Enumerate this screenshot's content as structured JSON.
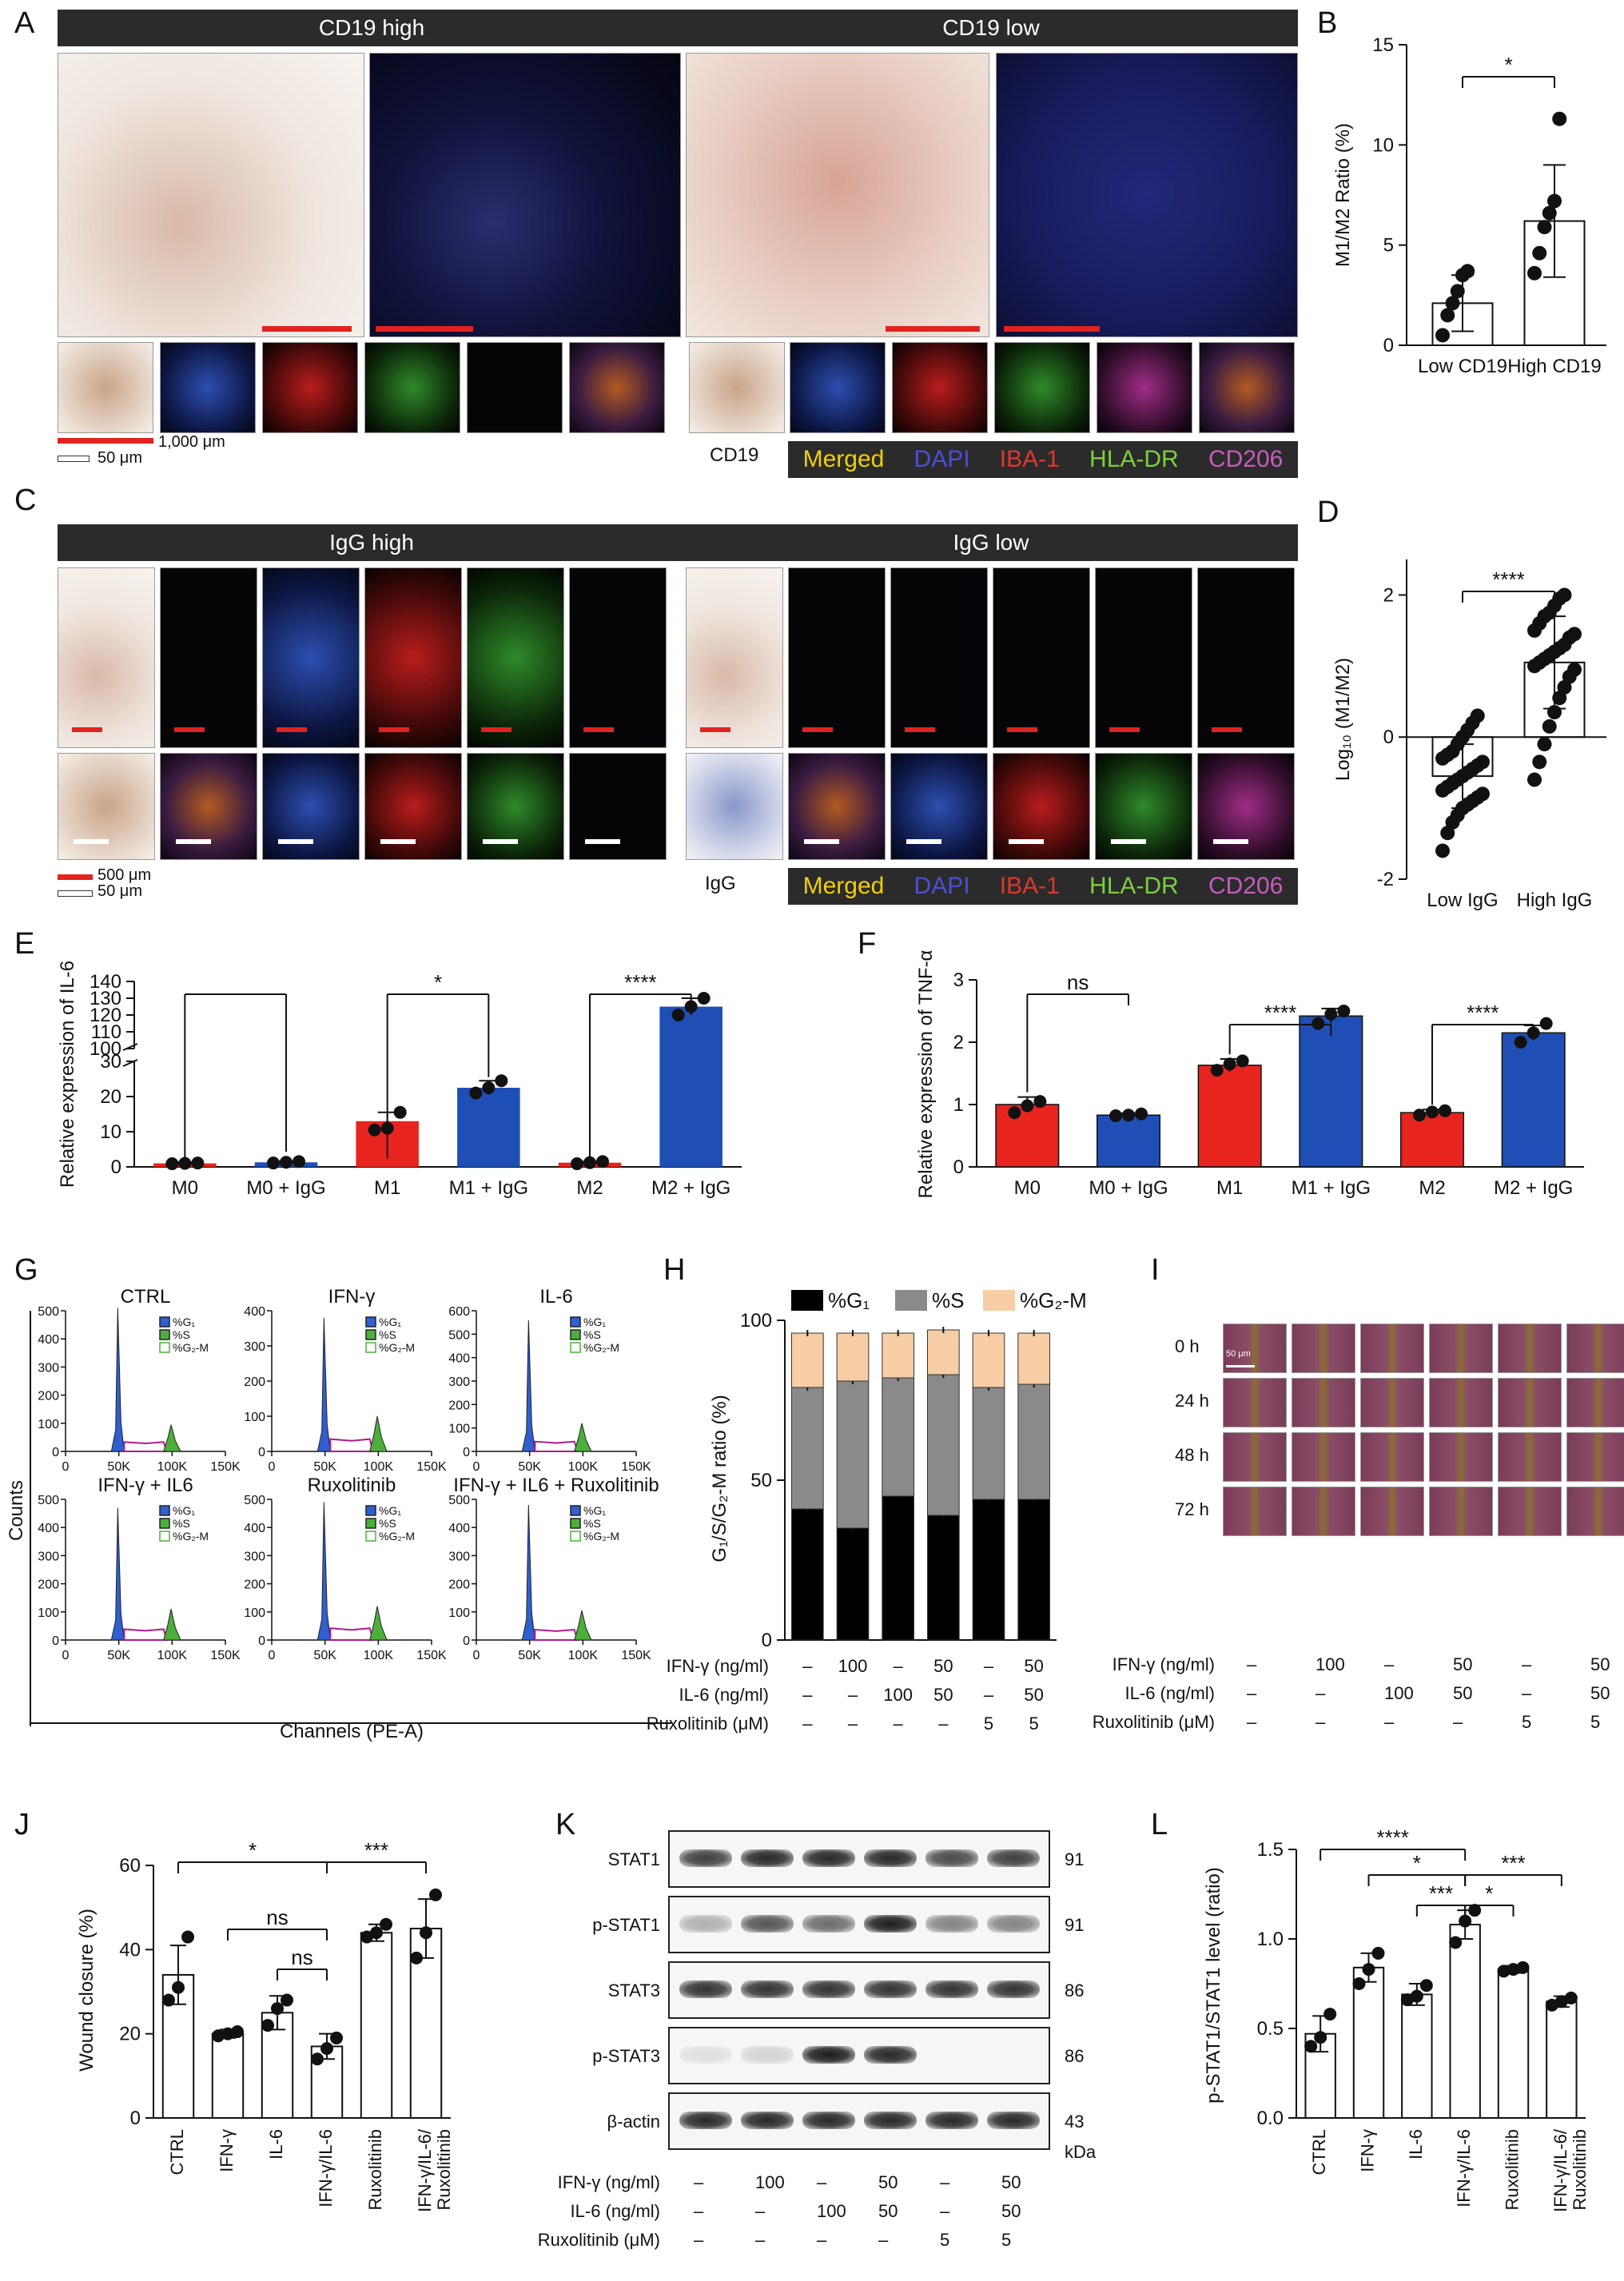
{
  "panels": {
    "A": "A",
    "B": "B",
    "C": "C",
    "D": "D",
    "E": "E",
    "F": "F",
    "G": "G",
    "H": "H",
    "I": "I",
    "J": "J",
    "K": "K",
    "L": "L"
  },
  "panelA": {
    "banner_high": "CD19 high",
    "banner_low": "CD19 low",
    "scale_1000": "1,000 μm",
    "scale_50": "50 μm",
    "marker_label": "CD19",
    "legend": {
      "merged": "Merged",
      "dapi": "DAPI",
      "iba1": "IBA-1",
      "hladr": "HLA-DR",
      "cd206": "CD206"
    },
    "legend_colors": {
      "merged": "#f0d000",
      "dapi": "#4b4fd6",
      "iba1": "#e0372c",
      "hladr": "#7bcf3c",
      "cd206": "#c75cc0"
    }
  },
  "panelC": {
    "banner_high": "IgG high",
    "banner_low": "IgG low",
    "scale_500": "500 μm",
    "scale_50": "50 μm",
    "marker_label": "IgG"
  },
  "chart_data": [
    {
      "id": "B",
      "type": "scatter",
      "ylabel": "M1/M2 Ratio (%)",
      "ylim": [
        0,
        15
      ],
      "yticks": [
        "0",
        "5",
        "10",
        "15"
      ],
      "categories": [
        "Low CD19",
        "High CD19"
      ],
      "means": [
        2.1,
        6.2
      ],
      "sd": [
        1.4,
        2.8
      ],
      "points": [
        [
          0.5,
          1.5,
          2.1,
          2.7,
          3.5,
          3.7
        ],
        [
          3.6,
          4.6,
          5.9,
          6.6,
          7.2,
          11.3
        ]
      ],
      "significance": [
        "*"
      ]
    },
    {
      "id": "D",
      "type": "scatter",
      "ylabel": "Log₁₀ (M1/M2)",
      "ylim": [
        -2,
        2.5
      ],
      "yticks": [
        "-2",
        "0",
        "2"
      ],
      "categories": [
        "Low IgG",
        "High IgG"
      ],
      "means": [
        -0.55,
        1.05
      ],
      "sd": [
        0.45,
        0.65
      ],
      "points": [
        [
          -1.6,
          -1.35,
          -1.2,
          -1.1,
          -1.0,
          -0.95,
          -0.9,
          -0.85,
          -0.8,
          -0.75,
          -0.7,
          -0.65,
          -0.6,
          -0.55,
          -0.5,
          -0.45,
          -0.4,
          -0.35,
          -0.3,
          -0.25,
          -0.2,
          -0.1,
          0.0,
          0.1,
          0.2,
          0.3
        ],
        [
          -0.6,
          -0.35,
          -0.1,
          0.15,
          0.35,
          0.55,
          0.7,
          0.85,
          0.95,
          1.0,
          1.05,
          1.1,
          1.15,
          1.2,
          1.25,
          1.3,
          1.4,
          1.45,
          1.5,
          1.6,
          1.7,
          1.75,
          1.85,
          1.95,
          2.0
        ]
      ],
      "significance": [
        "****"
      ]
    },
    {
      "id": "E",
      "type": "bar",
      "ylabel": "Relative expression of IL-6",
      "categories": [
        "M0",
        "M0 + IgG",
        "M1",
        "M1 + IgG",
        "M2",
        "M2 + IgG"
      ],
      "values": [
        1.0,
        1.3,
        13.0,
        22.5,
        1.2,
        125.0
      ],
      "sd": [
        0.3,
        0.3,
        2.5,
        2.0,
        0.3,
        5.0
      ],
      "colors": [
        "#e8241f",
        "#1f4fb5",
        "#e8241f",
        "#1f4fb5",
        "#e8241f",
        "#1f4fb5"
      ],
      "yticks_low": [
        "0",
        "10",
        "20",
        "30"
      ],
      "yticks_high": [
        "100",
        "110",
        "120",
        "130",
        "140"
      ],
      "points": [
        [
          0.9,
          1.0,
          1.1
        ],
        [
          1.1,
          1.3,
          1.5
        ],
        [
          10.5,
          11.0,
          15.5
        ],
        [
          21.0,
          22.5,
          24.5
        ],
        [
          0.9,
          1.2,
          1.5
        ],
        [
          120.0,
          125.0,
          130.0
        ]
      ],
      "significance": [
        {
          "label": "",
          "from": 0,
          "to": 1
        },
        {
          "label": "*",
          "from": 2,
          "to": 3
        },
        {
          "label": "****",
          "from": 4,
          "to": 5
        }
      ]
    },
    {
      "id": "F",
      "type": "bar",
      "ylabel": "Relative expression of TNF-α",
      "ylim": [
        0,
        3
      ],
      "yticks": [
        "0",
        "1",
        "2",
        "3"
      ],
      "categories": [
        "M0",
        "M0 + IgG",
        "M1",
        "M1 + IgG",
        "M2",
        "M2 + IgG"
      ],
      "values": [
        1.0,
        0.83,
        1.63,
        2.42,
        0.87,
        2.15
      ],
      "sd": [
        0.12,
        0.03,
        0.1,
        0.12,
        0.05,
        0.12
      ],
      "colors": [
        "#e8241f",
        "#1f4fb5",
        "#e8241f",
        "#1f4fb5",
        "#e8241f",
        "#1f4fb5"
      ],
      "points": [
        [
          0.87,
          0.98,
          1.05
        ],
        [
          0.82,
          0.83,
          0.85
        ],
        [
          1.55,
          1.65,
          1.7
        ],
        [
          2.3,
          2.45,
          2.5
        ],
        [
          0.83,
          0.88,
          0.9
        ],
        [
          2.0,
          2.15,
          2.3
        ]
      ],
      "significance": [
        {
          "label": "ns",
          "from": 0,
          "to": 1
        },
        {
          "label": "****",
          "from": 2,
          "to": 3
        },
        {
          "label": "****",
          "from": 4,
          "to": 5
        }
      ]
    },
    {
      "id": "G",
      "type": "area",
      "xlabel": "Channels (PE-A)",
      "ylabel": "Counts",
      "histograms": [
        {
          "title": "CTRL",
          "yticks": [
            "0",
            "100",
            "200",
            "300",
            "400",
            "500"
          ],
          "ymax": 500,
          "peak1": 510,
          "peak2": 95
        },
        {
          "title": "IFN-γ",
          "yticks": [
            "0",
            "100",
            "200",
            "300",
            "400"
          ],
          "ymax": 400,
          "peak1": 380,
          "peak2": 100
        },
        {
          "title": "IL-6",
          "yticks": [
            "0",
            "100",
            "200",
            "300",
            "400",
            "500",
            "600"
          ],
          "ymax": 600,
          "peak1": 560,
          "peak2": 120
        },
        {
          "title": "IFN-γ + IL6",
          "yticks": [
            "0",
            "100",
            "200",
            "300",
            "400",
            "500"
          ],
          "ymax": 500,
          "peak1": 470,
          "peak2": 110
        },
        {
          "title": "Ruxolitinib",
          "yticks": [
            "0",
            "100",
            "200",
            "300",
            "400",
            "500"
          ],
          "ymax": 500,
          "peak1": 490,
          "peak2": 120
        },
        {
          "title": "IFN-γ + IL6 + Ruxolitinib",
          "yticks": [
            "0",
            "100",
            "200",
            "300",
            "400",
            "500"
          ],
          "ymax": 500,
          "peak1": 480,
          "peak2": 105
        }
      ],
      "xticks": [
        "0",
        "50K",
        "100K",
        "150K"
      ],
      "legend": [
        "%G₁",
        "%S",
        "%G₂-M"
      ]
    },
    {
      "id": "H",
      "type": "bar",
      "stacked": true,
      "ylabel": "G₁/S/G₂-M ratio (%)",
      "ylim": [
        0,
        100
      ],
      "yticks": [
        "0",
        "50",
        "100"
      ],
      "legend": [
        "%G₁",
        "%S",
        "%G₂-M"
      ],
      "colors": [
        "#000000",
        "#8a8a8a",
        "#f6cda4"
      ],
      "series": [
        {
          "name": "%G₁",
          "values": [
            41,
            35,
            45,
            39,
            44,
            44
          ]
        },
        {
          "name": "%S",
          "values": [
            38,
            46,
            37,
            44,
            35,
            36
          ]
        },
        {
          "name": "%G₂-M",
          "values": [
            17,
            15,
            14,
            14,
            17,
            16
          ]
        }
      ],
      "rows": [
        {
          "label": "IFN-γ (ng/ml)",
          "values": [
            "–",
            "100",
            "–",
            "50",
            "–",
            "50"
          ]
        },
        {
          "label": "IL-6 (ng/ml)",
          "values": [
            "–",
            "–",
            "100",
            "50",
            "–",
            "50"
          ]
        },
        {
          "label": "Ruxolitinib (μM)",
          "values": [
            "–",
            "–",
            "–",
            "–",
            "5",
            "5"
          ]
        }
      ]
    },
    {
      "id": "J",
      "type": "bar",
      "ylabel": "Wound closure (%)",
      "ylim": [
        0,
        60
      ],
      "yticks": [
        "0",
        "20",
        "40",
        "60"
      ],
      "categories": [
        "CTRL",
        "IFN-γ",
        "IL-6",
        "IFN-γ/IL-6",
        "Ruxolitinib",
        "IFN-γ/IL-6/\nRuxolitinib"
      ],
      "values": [
        34,
        20,
        25,
        17,
        44,
        45
      ],
      "sd": [
        7,
        1,
        4,
        3,
        2,
        7
      ],
      "points": [
        [
          28,
          31,
          43
        ],
        [
          19.5,
          20,
          20.5
        ],
        [
          22,
          26,
          28
        ],
        [
          14,
          16.5,
          19
        ],
        [
          43,
          44,
          46
        ],
        [
          38,
          44,
          53
        ]
      ],
      "significance": [
        {
          "label": "*",
          "from": 0,
          "to": 3
        },
        {
          "label": "***",
          "from": 3,
          "to": 5
        },
        {
          "label": "ns",
          "from": 1,
          "to": 3
        },
        {
          "label": "ns",
          "from": 2,
          "to": 3
        }
      ]
    },
    {
      "id": "L",
      "type": "bar",
      "ylabel": "p-STAT1/STAT1 level (ratio)",
      "ylim": [
        0,
        1.5
      ],
      "yticks": [
        "0.0",
        "0.5",
        "1.0",
        "1.5"
      ],
      "categories": [
        "CTRL",
        "IFN-γ",
        "IL-6",
        "IFN-γ/IL-6",
        "Ruxolitinib",
        "IFN-γ/IL-6/\nRuxolitinib"
      ],
      "values": [
        0.47,
        0.84,
        0.69,
        1.08,
        0.83,
        0.65
      ],
      "sd": [
        0.1,
        0.08,
        0.06,
        0.08,
        0.02,
        0.03
      ],
      "points": [
        [
          0.4,
          0.45,
          0.58
        ],
        [
          0.75,
          0.83,
          0.92
        ],
        [
          0.66,
          0.68,
          0.74
        ],
        [
          0.98,
          1.1,
          1.16
        ],
        [
          0.82,
          0.83,
          0.84
        ],
        [
          0.63,
          0.65,
          0.67
        ]
      ],
      "significance": [
        {
          "label": "****",
          "from": 0,
          "to": 3
        },
        {
          "label": "*",
          "from": 1,
          "to": 3
        },
        {
          "label": "***",
          "from": 2,
          "to": 3
        },
        {
          "label": "***",
          "from": 3,
          "to": 5
        },
        {
          "label": "*",
          "from": 3,
          "to": 4
        }
      ]
    }
  ],
  "panelI": {
    "times": [
      "0 h",
      "24 h",
      "48 h",
      "72 h"
    ],
    "scale": "50 μm",
    "rows": [
      {
        "label": "IFN-γ (ng/ml)",
        "values": [
          "–",
          "100",
          "–",
          "50",
          "–",
          "50"
        ]
      },
      {
        "label": "IL-6 (ng/ml)",
        "values": [
          "–",
          "–",
          "100",
          "50",
          "–",
          "50"
        ]
      },
      {
        "label": "Ruxolitinib (μM)",
        "values": [
          "–",
          "–",
          "–",
          "–",
          "5",
          "5"
        ]
      }
    ]
  },
  "panelK": {
    "blots": [
      {
        "name": "STAT1",
        "kda": "91"
      },
      {
        "name": "p-STAT1",
        "kda": "91"
      },
      {
        "name": "STAT3",
        "kda": "86"
      },
      {
        "name": "p-STAT3",
        "kda": "86"
      },
      {
        "name": "β-actin",
        "kda": "43"
      }
    ],
    "kda_unit": "kDa",
    "rows": [
      {
        "label": "IFN-γ (ng/ml)",
        "values": [
          "–",
          "100",
          "–",
          "50",
          "–",
          "50"
        ]
      },
      {
        "label": "IL-6 (ng/ml)",
        "values": [
          "–",
          "–",
          "100",
          "50",
          "–",
          "50"
        ]
      },
      {
        "label": "Ruxolitinib (μM)",
        "values": [
          "–",
          "–",
          "–",
          "–",
          "5",
          "5"
        ]
      }
    ],
    "intensities": [
      [
        0.8,
        0.9,
        0.9,
        0.9,
        0.75,
        0.8
      ],
      [
        0.3,
        0.7,
        0.6,
        0.95,
        0.5,
        0.5
      ],
      [
        0.85,
        0.85,
        0.85,
        0.85,
        0.85,
        0.85
      ],
      [
        0.1,
        0.15,
        0.95,
        0.9,
        0.0,
        0.0
      ],
      [
        0.9,
        0.9,
        0.9,
        0.9,
        0.9,
        0.9
      ]
    ]
  }
}
